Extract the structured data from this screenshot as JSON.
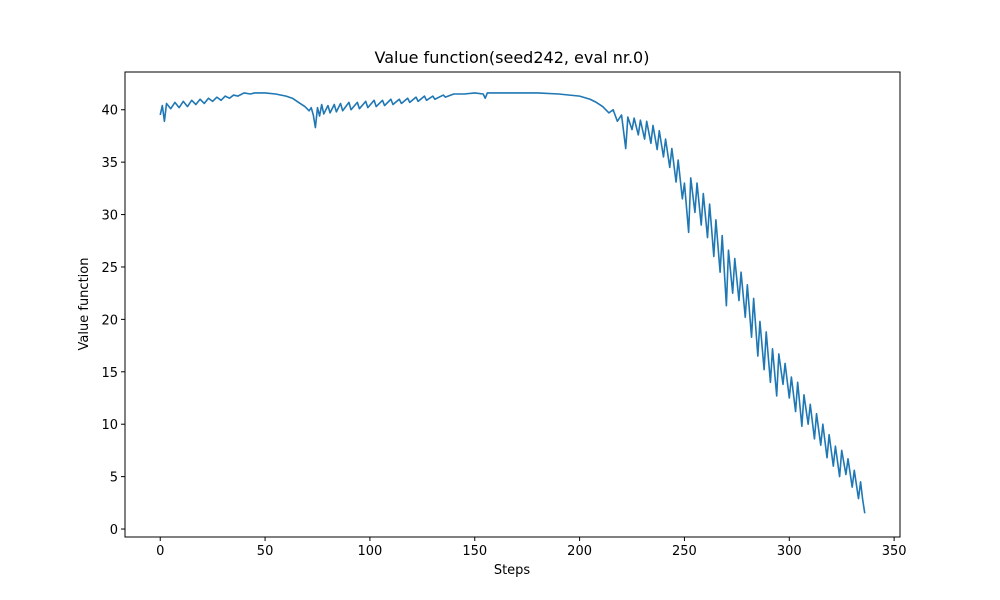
{
  "chart_data": {
    "type": "line",
    "title": "Value function(seed242, eval nr.0)",
    "x_label": "Steps",
    "y_label": "Value function",
    "xlim": [
      -16.8,
      352.8
    ],
    "ylim": [
      -0.76,
      43.6
    ],
    "xticks": [
      0,
      50,
      100,
      150,
      200,
      250,
      300,
      350
    ],
    "yticks": [
      0,
      5,
      10,
      15,
      20,
      25,
      30,
      35,
      40
    ],
    "grid": false,
    "series": [
      {
        "name": "Value function",
        "color": "#1f77b4",
        "x": [
          0,
          1,
          2,
          3,
          5,
          7,
          9,
          11,
          13,
          15,
          17,
          19,
          21,
          23,
          25,
          27,
          29,
          31,
          33,
          35,
          37,
          40,
          43,
          45,
          50,
          55,
          60,
          63,
          66,
          69,
          71,
          72,
          73,
          74,
          75,
          76,
          77,
          78,
          80,
          81,
          83,
          84,
          86,
          87,
          90,
          91,
          94,
          95,
          98,
          99,
          102,
          103,
          106,
          107,
          110,
          111,
          114,
          115,
          118,
          119,
          122,
          123,
          126,
          127,
          130,
          131,
          135,
          136,
          140,
          145,
          150,
          154,
          155,
          156,
          160,
          170,
          180,
          190,
          200,
          205,
          208,
          211,
          214,
          216,
          218,
          220,
          222,
          223,
          225,
          226,
          228,
          229,
          231,
          232,
          234,
          235,
          237,
          238,
          240,
          241,
          243,
          244,
          246,
          247,
          249,
          250,
          252,
          253,
          255,
          256,
          258,
          259,
          261,
          262,
          264,
          265,
          267,
          268,
          270,
          271,
          273,
          274,
          276,
          277,
          279,
          280,
          282,
          283,
          285,
          286,
          288,
          289,
          291,
          292,
          294,
          295,
          297,
          298,
          300,
          301,
          303,
          304,
          306,
          307,
          309,
          310,
          312,
          313,
          315,
          316,
          318,
          319,
          321,
          322,
          324,
          325,
          327,
          328,
          330,
          331,
          333,
          334,
          335,
          336
        ],
        "values": [
          39.5,
          40.4,
          38.9,
          40.6,
          40.1,
          40.7,
          40.2,
          40.8,
          40.3,
          40.9,
          40.5,
          41.0,
          40.6,
          41.1,
          40.8,
          41.2,
          40.9,
          41.3,
          41.1,
          41.4,
          41.3,
          41.6,
          41.5,
          41.6,
          41.6,
          41.5,
          41.3,
          41.1,
          40.7,
          40.3,
          39.9,
          40.2,
          39.5,
          38.3,
          40.2,
          39.4,
          40.5,
          39.6,
          40.4,
          39.7,
          40.5,
          39.8,
          40.6,
          39.9,
          40.7,
          40.0,
          40.7,
          40.1,
          40.8,
          40.2,
          40.9,
          40.3,
          40.9,
          40.4,
          41.0,
          40.5,
          41.0,
          40.6,
          41.1,
          40.7,
          41.2,
          40.8,
          41.3,
          40.9,
          41.3,
          41.0,
          41.4,
          41.2,
          41.5,
          41.5,
          41.6,
          41.5,
          41.1,
          41.6,
          41.6,
          41.6,
          41.6,
          41.5,
          41.3,
          41.0,
          40.7,
          40.3,
          39.7,
          40.0,
          38.9,
          39.5,
          36.3,
          39.3,
          38.1,
          39.2,
          37.6,
          39.0,
          37.2,
          38.9,
          36.8,
          38.5,
          36.2,
          38.0,
          35.5,
          37.2,
          34.5,
          36.3,
          33.1,
          35.2,
          31.5,
          33.0,
          28.3,
          33.5,
          30.2,
          33.0,
          29.0,
          32.0,
          27.8,
          31.0,
          26.0,
          29.5,
          24.5,
          28.0,
          21.3,
          26.6,
          22.5,
          25.8,
          21.8,
          24.5,
          20.2,
          23.3,
          18.3,
          22.0,
          16.5,
          19.8,
          15.2,
          18.8,
          14.0,
          17.2,
          12.7,
          16.7,
          13.8,
          15.8,
          12.5,
          14.5,
          11.2,
          14.0,
          9.8,
          12.8,
          10.0,
          11.9,
          8.6,
          11.0,
          8.0,
          10.0,
          6.8,
          9.0,
          6.0,
          7.9,
          5.0,
          7.5,
          5.2,
          6.7,
          4.0,
          5.6,
          2.9,
          4.5,
          2.8,
          1.5
        ]
      }
    ]
  }
}
